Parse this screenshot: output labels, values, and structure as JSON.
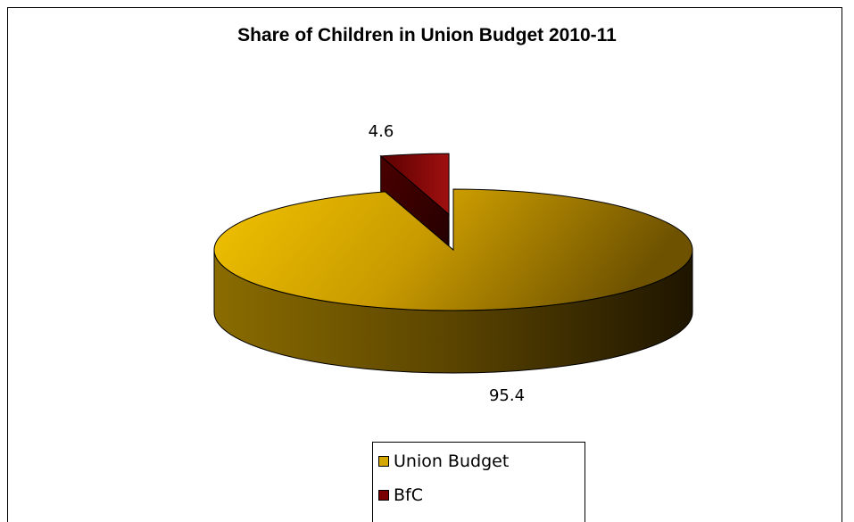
{
  "chart_data": {
    "type": "pie",
    "title": "Share of Children in Union Budget 2010-11",
    "categories": [
      "Union Budget",
      "BfC"
    ],
    "values": [
      95.4,
      4.6
    ],
    "colors": [
      "#d4a800",
      "#7a0000"
    ],
    "exploded": "BfC",
    "three_d": true,
    "legend_position": "bottom"
  }
}
